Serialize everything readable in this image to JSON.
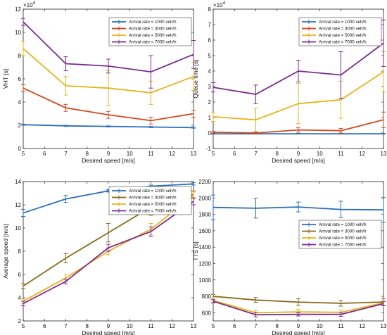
{
  "colors": {
    "series1": "#2a6ebd",
    "series2": "#d4461c",
    "series3": "#e8b21e",
    "series4": "#7a2c8c",
    "series2_alt": "#8a6a1c",
    "axis": "#222222"
  },
  "legend_labels": [
    "Arrival rate = 1000 veh/h",
    "Arrival rate = 3000 veh/h",
    "Arrival rate = 5000 veh/h",
    "Arrival rate = 7000 veh/h"
  ],
  "chart_data": [
    {
      "type": "line",
      "ylabel": "VHT [s]",
      "xlabel": "Desired speed [m/s]",
      "exponent": "×10",
      "exponent_power": "4",
      "xlim": [
        5,
        13
      ],
      "ylim": [
        0,
        12
      ],
      "xticks": [
        5,
        6,
        7,
        8,
        9,
        10,
        11,
        12,
        13
      ],
      "yticks": [
        0,
        2,
        4,
        6,
        8,
        10,
        12
      ],
      "x": [
        5,
        7,
        9,
        11,
        13
      ],
      "series": [
        {
          "name": "Arrival rate = 1000 veh/h",
          "values": [
            2.05,
            1.95,
            1.9,
            1.85,
            1.8
          ],
          "err": [
            0.05,
            0.05,
            0.05,
            0.05,
            0.05
          ]
        },
        {
          "name": "Arrival rate = 3000 veh/h",
          "values": [
            5.2,
            3.5,
            2.9,
            2.4,
            3.0
          ],
          "err": [
            0.3,
            0.3,
            0.3,
            0.3,
            0.3
          ]
        },
        {
          "name": "Arrival rate = 5000 veh/h",
          "values": [
            8.6,
            5.4,
            5.2,
            4.8,
            6.2
          ],
          "err": [
            0.6,
            0.8,
            1.5,
            1.0,
            1.2
          ]
        },
        {
          "name": "Arrival rate = 7000 veh/h",
          "values": [
            10.9,
            7.3,
            7.1,
            6.6,
            8.1
          ],
          "err": [
            0.3,
            0.6,
            0.6,
            1.4,
            1.2
          ]
        }
      ]
    },
    {
      "type": "line",
      "ylabel": "Queue time [s]",
      "xlabel": "Desired speed [m/s]",
      "exponent": "×10",
      "exponent_power": "4",
      "xlim": [
        5,
        13
      ],
      "ylim": [
        -1,
        8
      ],
      "xticks": [
        5,
        6,
        7,
        8,
        9,
        10,
        11,
        12,
        13
      ],
      "yticks": [
        -1,
        0,
        1,
        2,
        3,
        4,
        5,
        6,
        7,
        8
      ],
      "x": [
        5,
        7,
        9,
        11,
        13
      ],
      "series": [
        {
          "name": "Arrival rate = 1000 veh/h",
          "values": [
            -0.05,
            -0.05,
            -0.05,
            -0.05,
            -0.05
          ],
          "err": [
            0.02,
            0.02,
            0.02,
            0.02,
            0.02
          ]
        },
        {
          "name": "Arrival rate = 3000 veh/h",
          "values": [
            0.05,
            0.0,
            0.2,
            0.15,
            0.85
          ],
          "err": [
            0.05,
            0.05,
            0.15,
            0.15,
            0.5
          ]
        },
        {
          "name": "Arrival rate = 5000 veh/h",
          "values": [
            1.05,
            0.85,
            1.9,
            2.15,
            3.95
          ],
          "err": [
            0.3,
            0.75,
            1.3,
            1.2,
            1.3
          ]
        },
        {
          "name": "Arrival rate = 7000 veh/h",
          "values": [
            2.95,
            2.5,
            4.0,
            3.75,
            5.8
          ],
          "err": [
            0.3,
            0.6,
            0.7,
            1.5,
            1.5
          ]
        }
      ]
    },
    {
      "type": "line",
      "ylabel": "Average speed [m/s]",
      "xlabel": "Desired speed [m/s]",
      "xlim": [
        5,
        13
      ],
      "ylim": [
        2,
        14
      ],
      "xticks": [
        5,
        6,
        7,
        8,
        9,
        10,
        11,
        12,
        13
      ],
      "yticks": [
        2,
        4,
        6,
        8,
        10,
        12,
        14
      ],
      "x": [
        5,
        7,
        9,
        11,
        13
      ],
      "series": [
        {
          "name": "Arrival rate = 1000 veh/h",
          "values": [
            11.3,
            12.5,
            13.2,
            13.6,
            13.8
          ],
          "err": [
            0.3,
            0.3,
            0.1,
            0.1,
            0.1
          ]
        },
        {
          "name": "Arrival rate = 3000 veh/h",
          "values": [
            5.0,
            7.4,
            9.6,
            11.8,
            12.9
          ],
          "err": [
            0.2,
            0.4,
            0.8,
            0.7,
            0.3
          ]
        },
        {
          "name": "Arrival rate = 5000 veh/h",
          "values": [
            3.7,
            5.7,
            8.0,
            9.9,
            12.8
          ],
          "err": [
            0.2,
            0.3,
            0.3,
            0.5,
            0.3
          ]
        },
        {
          "name": "Arrival rate = 7000 veh/h",
          "values": [
            3.5,
            5.4,
            8.3,
            9.7,
            12.3
          ],
          "err": [
            0.2,
            0.2,
            0.3,
            0.4,
            0.3
          ]
        }
      ]
    },
    {
      "type": "line",
      "ylabel": "TTS [s]",
      "xlabel": "Desired speed [m/s]",
      "xlim": [
        5,
        13
      ],
      "ylim": [
        500,
        2200
      ],
      "xticks": [
        5,
        6,
        7,
        8,
        9,
        10,
        11,
        12,
        13
      ],
      "yticks": [
        600,
        800,
        1000,
        1200,
        1400,
        1600,
        1800,
        2000,
        2200
      ],
      "x": [
        5,
        7,
        9,
        11,
        13
      ],
      "series": [
        {
          "name": "Arrival rate = 1000 veh/h",
          "values": [
            1885,
            1875,
            1890,
            1860,
            1855
          ],
          "err": [
            150,
            120,
            60,
            100,
            150
          ]
        },
        {
          "name": "Arrival rate = 3000 veh/h",
          "values": [
            800,
            755,
            730,
            715,
            730
          ],
          "err": [
            25,
            30,
            40,
            35,
            40
          ]
        },
        {
          "name": "Arrival rate = 5000 veh/h",
          "values": [
            750,
            600,
            610,
            605,
            720
          ],
          "err": [
            25,
            25,
            30,
            30,
            30
          ]
        },
        {
          "name": "Arrival rate = 7000 veh/h",
          "values": [
            740,
            575,
            580,
            580,
            710
          ],
          "err": [
            20,
            25,
            20,
            25,
            25
          ]
        }
      ]
    }
  ]
}
